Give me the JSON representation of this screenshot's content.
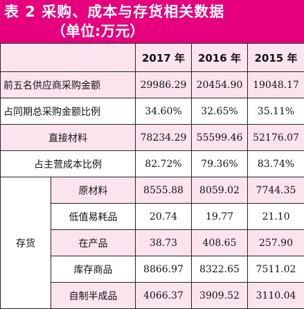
{
  "title": {
    "line1": "表 2   采购、成本与存货相关数据",
    "line2": "（单位:万元）"
  },
  "header": {
    "blank": "",
    "years": [
      "2017 年",
      "2016 年",
      "2015 年"
    ]
  },
  "rows": [
    {
      "label": "前五名供应商采购金额",
      "values": [
        "29986.29",
        "20454.90",
        "19048.17"
      ]
    },
    {
      "label": "占同期总采购金额比例",
      "values": [
        "34.60%",
        "32.65%",
        "35.11%"
      ]
    },
    {
      "label": "直接材料",
      "values": [
        "78234.29",
        "55599.46",
        "52176.07"
      ]
    },
    {
      "label": "占主营成本比例",
      "values": [
        "82.72%",
        "79.36%",
        "83.74%"
      ]
    }
  ],
  "inventory": {
    "group_label": "存货",
    "items": [
      {
        "label": "原材料",
        "values": [
          "8555.88",
          "8059.02",
          "7744.35"
        ]
      },
      {
        "label": "低值易耗品",
        "values": [
          "20.74",
          "19.77",
          "21.10"
        ]
      },
      {
        "label": "在产品",
        "values": [
          "38.73",
          "408.65",
          "257.90"
        ]
      },
      {
        "label": "库存商品",
        "values": [
          "8866.97",
          "8322.65",
          "7511.02"
        ]
      },
      {
        "label": "自制半成品",
        "values": [
          "4066.37",
          "3909.52",
          "3110.04"
        ]
      }
    ]
  },
  "colors": {
    "title_bg": "#e6007e",
    "row_tint": "#fce4ef",
    "border": "#222222"
  }
}
